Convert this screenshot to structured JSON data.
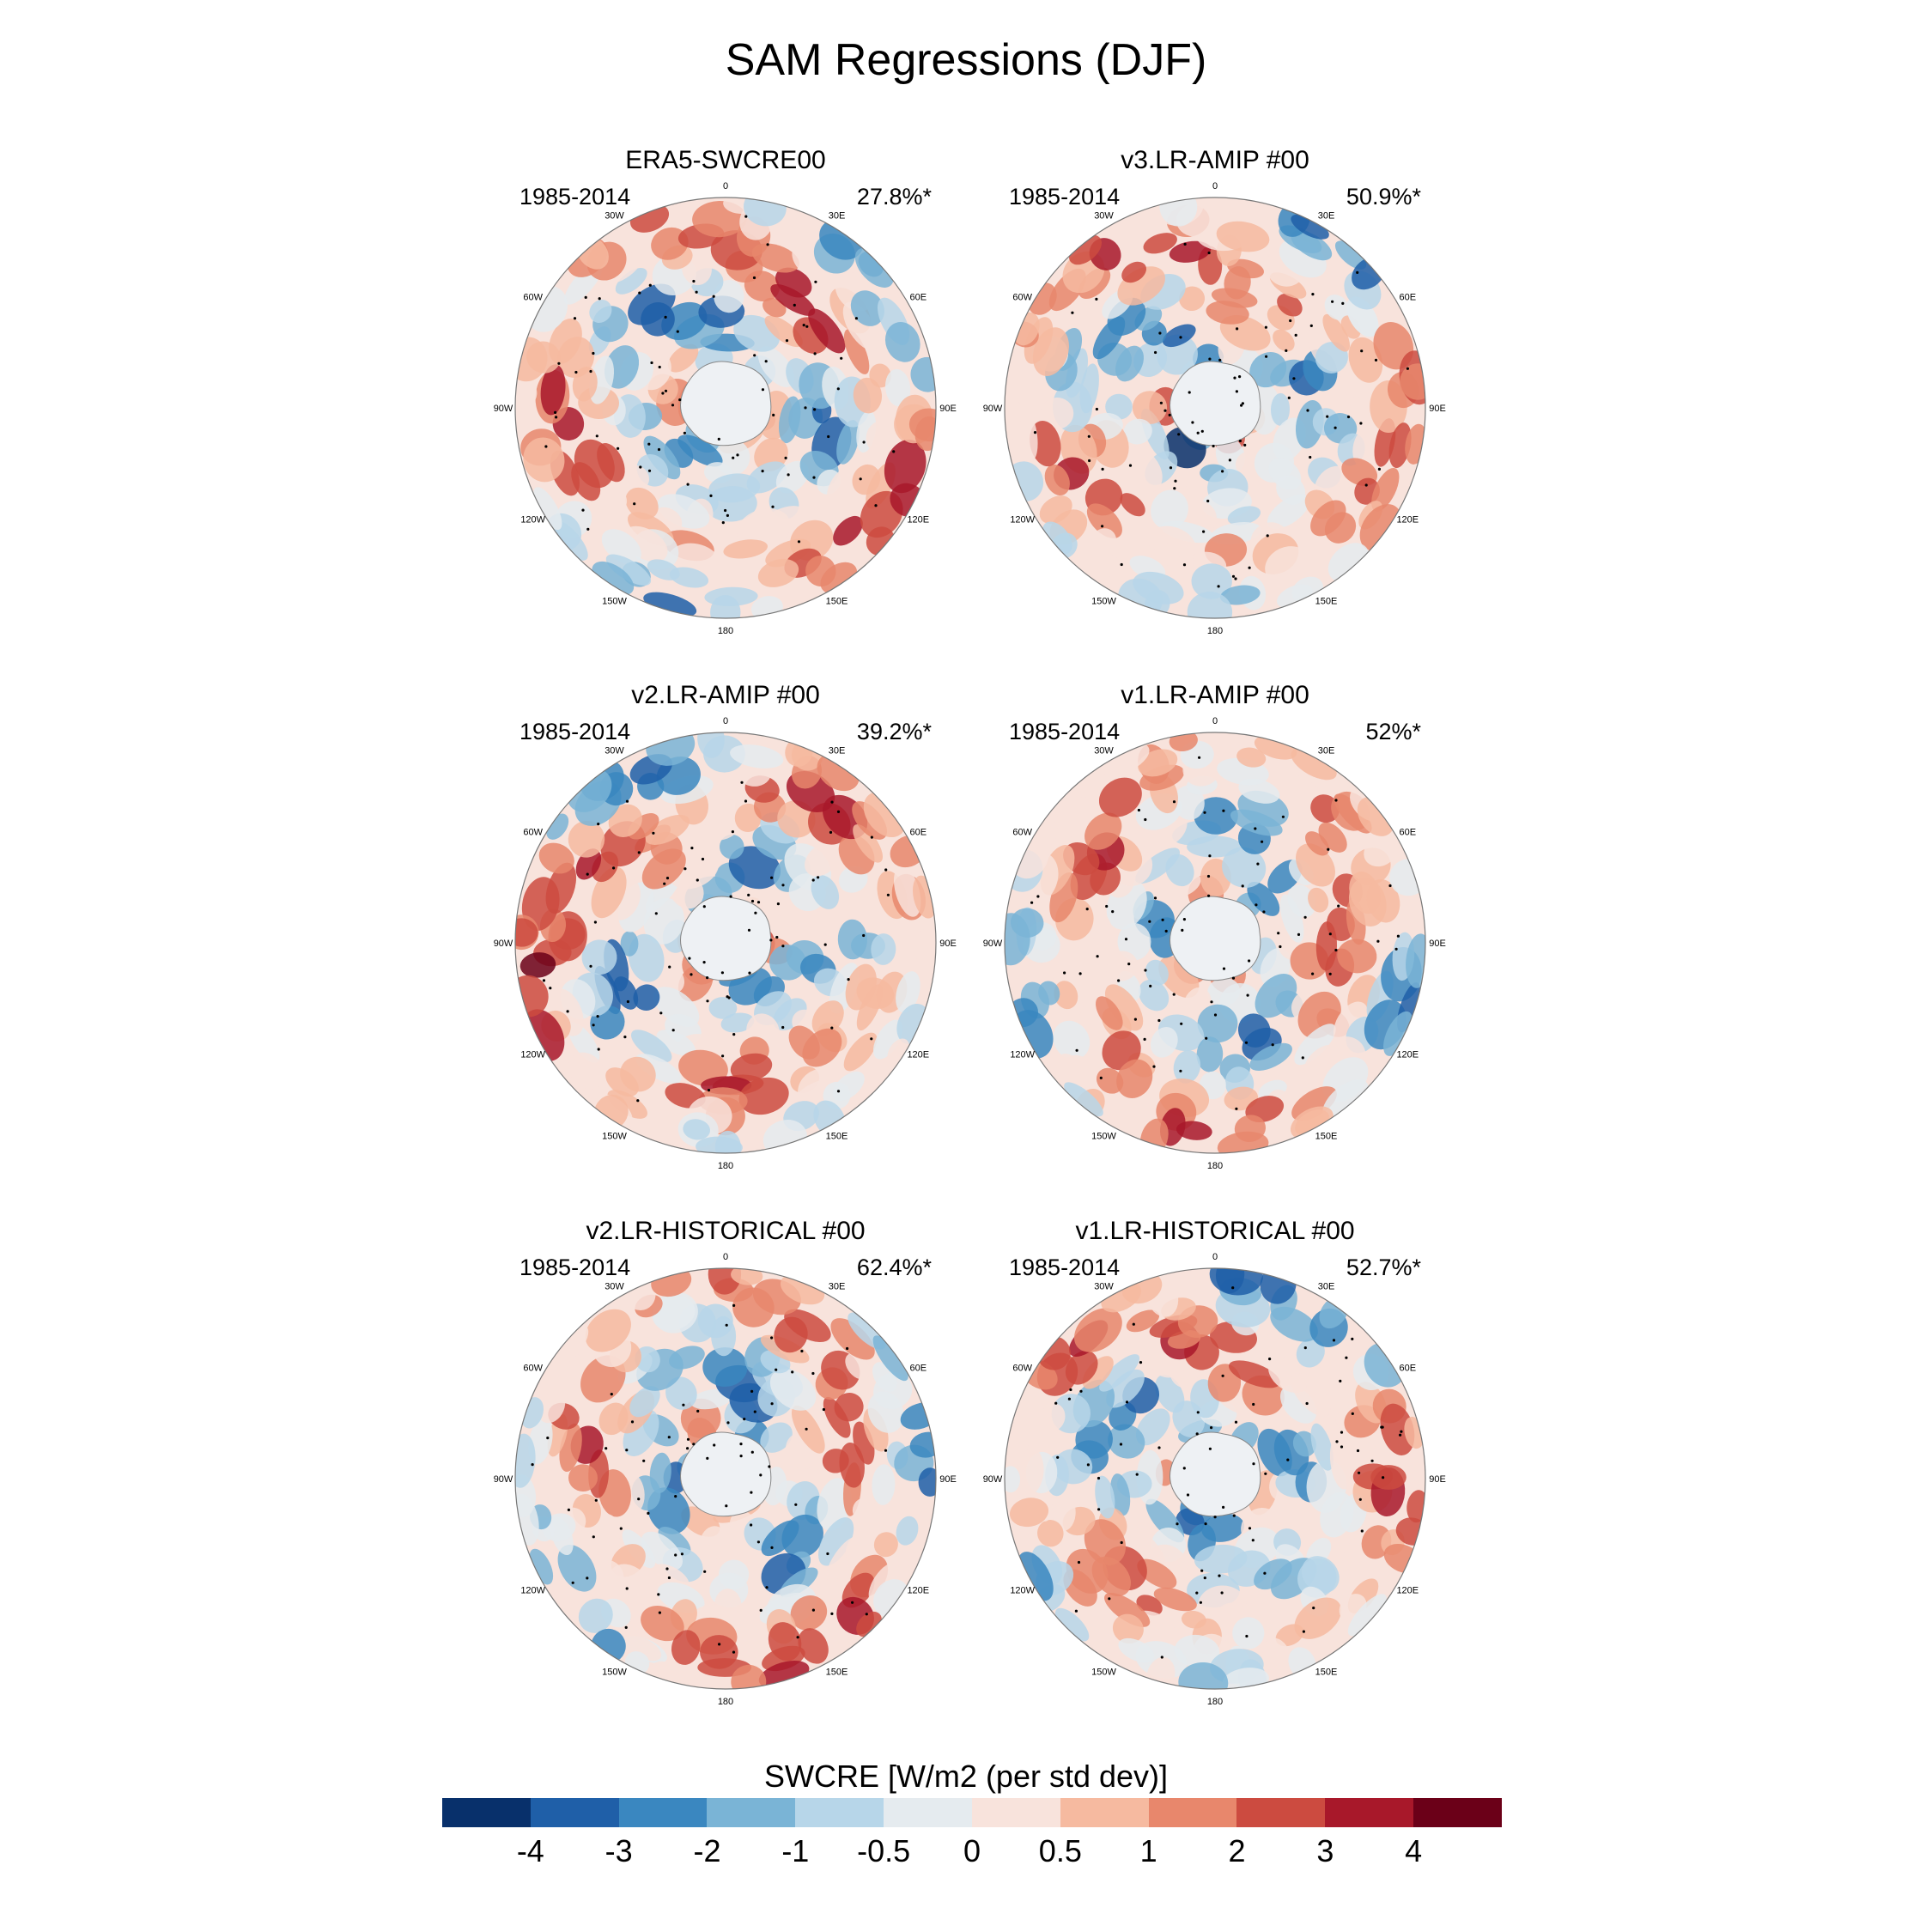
{
  "title": "SAM Regressions (DJF)",
  "longitude_labels": {
    "0": "0",
    "30E": "30E",
    "60E": "60E",
    "90E": "90E",
    "120E": "120E",
    "150E": "150E",
    "180": "180",
    "150W": "150W",
    "120W": "120W",
    "90W": "90W",
    "60W": "60W",
    "30W": "30W"
  },
  "panels": [
    {
      "id": "era5",
      "title": "ERA5-SWCRE00",
      "years": "1985-2014",
      "percent": "27.8%*"
    },
    {
      "id": "v3-amip",
      "title": "v3.LR-AMIP  #00",
      "years": "1985-2014",
      "percent": "50.9%*"
    },
    {
      "id": "v2-amip",
      "title": "v2.LR-AMIP  #00",
      "years": "1985-2014",
      "percent": "39.2%*"
    },
    {
      "id": "v1-amip",
      "title": "v1.LR-AMIP  #00",
      "years": "1985-2014",
      "percent": "52%*"
    },
    {
      "id": "v2-hist",
      "title": "v2.LR-HISTORICAL  #00",
      "years": "1985-2014",
      "percent": "62.4%*"
    },
    {
      "id": "v1-hist",
      "title": "v1.LR-HISTORICAL  #00",
      "years": "1985-2014",
      "percent": "52.7%*"
    }
  ],
  "colorbar": {
    "title": "SWCRE [W/m2 (per std dev)]",
    "labels": [
      "-4",
      "-3",
      "-2",
      "-1",
      "-0.5",
      "0",
      "0.5",
      "1",
      "2",
      "3",
      "4"
    ],
    "colors": [
      "#08306b",
      "#1f5fa8",
      "#3a87c0",
      "#7ab4d6",
      "#b7d6e9",
      "#e5ebef",
      "#f8e3dc",
      "#f6baa0",
      "#e8876c",
      "#cc4b40",
      "#a8182a",
      "#6b0018"
    ]
  }
}
